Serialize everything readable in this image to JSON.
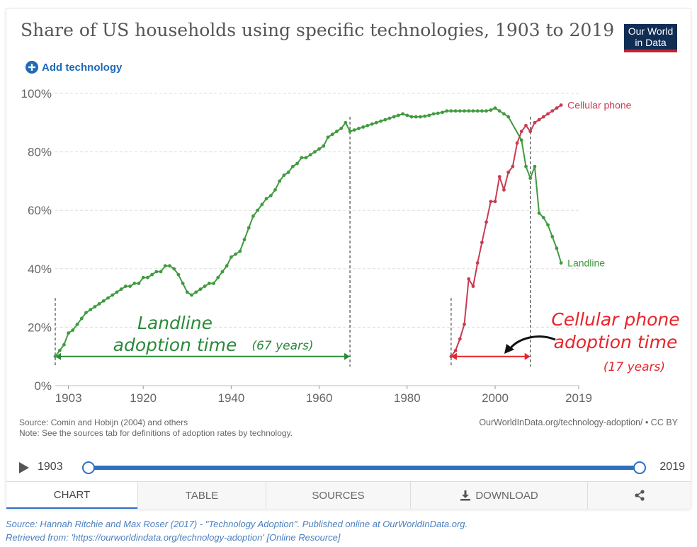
{
  "title": "Share of US households using specific technologies, 1903 to 2019",
  "logo": {
    "line1": "Our World",
    "line2": "in Data"
  },
  "add_technology_label": "Add technology",
  "chart_data": {
    "type": "line",
    "xlim": [
      1900,
      2019
    ],
    "ylim": [
      0,
      100
    ],
    "y_ticks": [
      0,
      20,
      40,
      60,
      80,
      100
    ],
    "y_tick_labels": [
      "0%",
      "20%",
      "40%",
      "60%",
      "80%",
      "100%"
    ],
    "x_ticks": [
      1903,
      1920,
      1940,
      1960,
      1980,
      2000,
      2019
    ],
    "x_tick_labels": [
      "1903",
      "1920",
      "1940",
      "1960",
      "1980",
      "2000",
      "2019"
    ],
    "grid": "horizontal dashed",
    "series": [
      {
        "name": "Landline",
        "color": "#3f9b3f",
        "points": [
          [
            1900,
            10
          ],
          [
            1901,
            12
          ],
          [
            1902,
            14
          ],
          [
            1903,
            18
          ],
          [
            1904,
            19
          ],
          [
            1905,
            21
          ],
          [
            1906,
            23
          ],
          [
            1907,
            25
          ],
          [
            1908,
            26
          ],
          [
            1909,
            27
          ],
          [
            1910,
            28
          ],
          [
            1911,
            29
          ],
          [
            1912,
            30
          ],
          [
            1913,
            31
          ],
          [
            1914,
            32
          ],
          [
            1915,
            33
          ],
          [
            1916,
            34
          ],
          [
            1917,
            34
          ],
          [
            1918,
            35
          ],
          [
            1919,
            35
          ],
          [
            1920,
            37
          ],
          [
            1921,
            37
          ],
          [
            1922,
            38
          ],
          [
            1923,
            39
          ],
          [
            1924,
            39
          ],
          [
            1925,
            41
          ],
          [
            1926,
            41
          ],
          [
            1927,
            40
          ],
          [
            1928,
            38
          ],
          [
            1929,
            35
          ],
          [
            1930,
            32
          ],
          [
            1931,
            31
          ],
          [
            1932,
            32
          ],
          [
            1933,
            33
          ],
          [
            1934,
            34
          ],
          [
            1935,
            35
          ],
          [
            1936,
            35
          ],
          [
            1937,
            37
          ],
          [
            1938,
            39
          ],
          [
            1939,
            41
          ],
          [
            1940,
            44
          ],
          [
            1941,
            45
          ],
          [
            1942,
            46
          ],
          [
            1943,
            50
          ],
          [
            1944,
            54
          ],
          [
            1945,
            58
          ],
          [
            1946,
            60
          ],
          [
            1947,
            62
          ],
          [
            1948,
            64
          ],
          [
            1949,
            65
          ],
          [
            1950,
            67
          ],
          [
            1951,
            70
          ],
          [
            1952,
            72
          ],
          [
            1953,
            73
          ],
          [
            1954,
            75
          ],
          [
            1955,
            76
          ],
          [
            1956,
            78
          ],
          [
            1957,
            78
          ],
          [
            1958,
            79
          ],
          [
            1959,
            80
          ],
          [
            1960,
            81
          ],
          [
            1961,
            82
          ],
          [
            1962,
            85
          ],
          [
            1963,
            86
          ],
          [
            1964,
            87
          ],
          [
            1965,
            88
          ],
          [
            1966,
            90
          ],
          [
            1967,
            87
          ],
          [
            1968,
            87.5
          ],
          [
            1969,
            88
          ],
          [
            1970,
            88.5
          ],
          [
            1971,
            89
          ],
          [
            1972,
            89.5
          ],
          [
            1973,
            90
          ],
          [
            1974,
            90.5
          ],
          [
            1975,
            91
          ],
          [
            1976,
            91.5
          ],
          [
            1977,
            92
          ],
          [
            1978,
            92.5
          ],
          [
            1979,
            93
          ],
          [
            1980,
            92.5
          ],
          [
            1981,
            92
          ],
          [
            1982,
            92
          ],
          [
            1983,
            92
          ],
          [
            1984,
            92.2
          ],
          [
            1985,
            92.5
          ],
          [
            1986,
            93
          ],
          [
            1987,
            93.2
          ],
          [
            1988,
            93.5
          ],
          [
            1989,
            94
          ],
          [
            1990,
            94
          ],
          [
            1991,
            94
          ],
          [
            1992,
            94
          ],
          [
            1993,
            94
          ],
          [
            1994,
            94
          ],
          [
            1995,
            94
          ],
          [
            1996,
            94
          ],
          [
            1997,
            94
          ],
          [
            1998,
            94
          ],
          [
            1999,
            94.3
          ],
          [
            2000,
            95
          ],
          [
            2001,
            94
          ],
          [
            2002,
            93
          ],
          [
            2003,
            92
          ],
          [
            2006,
            84
          ],
          [
            2007,
            75
          ],
          [
            2008,
            71
          ],
          [
            2009,
            75
          ],
          [
            2010,
            59
          ],
          [
            2011,
            57.5
          ],
          [
            2012,
            55
          ],
          [
            2013,
            51
          ],
          [
            2014,
            47
          ],
          [
            2015,
            42
          ]
        ]
      },
      {
        "name": "Cellular phone",
        "color": "#c93b52",
        "points": [
          [
            1990,
            10
          ],
          [
            1991,
            12
          ],
          [
            1992,
            16
          ],
          [
            1993,
            21
          ],
          [
            1994,
            36.5
          ],
          [
            1995,
            34
          ],
          [
            1996,
            42
          ],
          [
            1997,
            49
          ],
          [
            1998,
            56
          ],
          [
            1999,
            63
          ],
          [
            2000,
            63
          ],
          [
            2001,
            71.5
          ],
          [
            2002,
            67
          ],
          [
            2003,
            73
          ],
          [
            2004,
            75
          ],
          [
            2005,
            83
          ],
          [
            2006,
            87
          ],
          [
            2007,
            89
          ],
          [
            2008,
            87
          ],
          [
            2009,
            90
          ],
          [
            2010,
            91
          ],
          [
            2011,
            92
          ],
          [
            2012,
            93
          ],
          [
            2013,
            94
          ],
          [
            2014,
            95
          ],
          [
            2015,
            96
          ]
        ]
      }
    ]
  },
  "annotations": {
    "landline_line1": "Landline",
    "landline_line2": "adoption time",
    "landline_years": "(67 years)",
    "cell_line1": "Cellular phone",
    "cell_line2": "adoption time",
    "cell_years": "(17 years)"
  },
  "footnote": {
    "source": "Source: Comin and Hobijn (2004) and others",
    "note": "Note: See the sources tab for definitions of adoption rates by technology.",
    "license": "OurWorldInData.org/technology-adoption/ • CC BY"
  },
  "timeline": {
    "start": "1903",
    "end": "2019",
    "start_value": 0,
    "end_value": 1
  },
  "tabs": [
    "CHART",
    "TABLE",
    "SOURCES",
    "DOWNLOAD"
  ],
  "active_tab": "CHART",
  "source_citation": {
    "line1": "Source: Hannah Ritchie and Max Roser (2017) - \"Technology Adoption\". Published online at OurWorldInData.org.",
    "line2": "Retrieved from: 'https://ourworldindata.org/technology-adoption' [Online Resource]"
  }
}
